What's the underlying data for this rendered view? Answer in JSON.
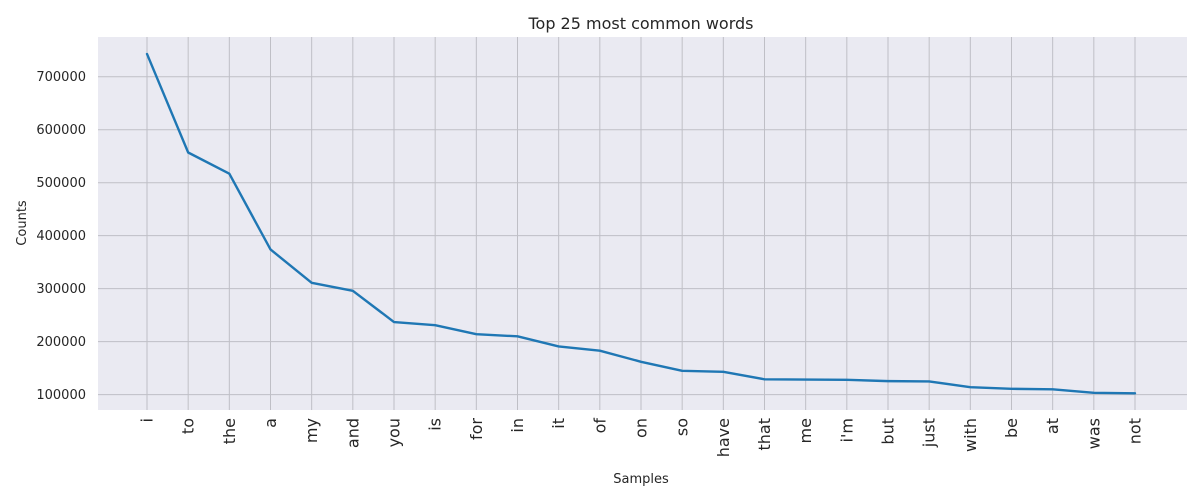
{
  "colors": {
    "line": "#1f77b4",
    "plot_background": "#eaeaf2",
    "grid": "#bfbfc6"
  },
  "chart_data": {
    "type": "line",
    "title": "Top 25 most common words",
    "xlabel": "Samples",
    "ylabel": "Counts",
    "categories": [
      "i",
      "to",
      "the",
      "a",
      "my",
      "and",
      "you",
      "is",
      "for",
      "in",
      "it",
      "of",
      "on",
      "so",
      "have",
      "that",
      "me",
      "i'm",
      "but",
      "just",
      "with",
      "be",
      "at",
      "was",
      "not"
    ],
    "values": [
      743000,
      557000,
      517000,
      374000,
      311000,
      296000,
      237000,
      231000,
      214000,
      210000,
      191000,
      183000,
      162000,
      145000,
      143000,
      129000,
      128500,
      128000,
      125500,
      125000,
      114000,
      111000,
      110000,
      103500,
      102500
    ],
    "y_ticks": [
      100000,
      200000,
      300000,
      400000,
      500000,
      600000,
      700000
    ],
    "y_tick_labels": [
      "100000",
      "200000",
      "300000",
      "400000",
      "500000",
      "600000",
      "700000"
    ],
    "ylim": [
      71000,
      775000
    ],
    "grid": true,
    "legend": "none"
  }
}
